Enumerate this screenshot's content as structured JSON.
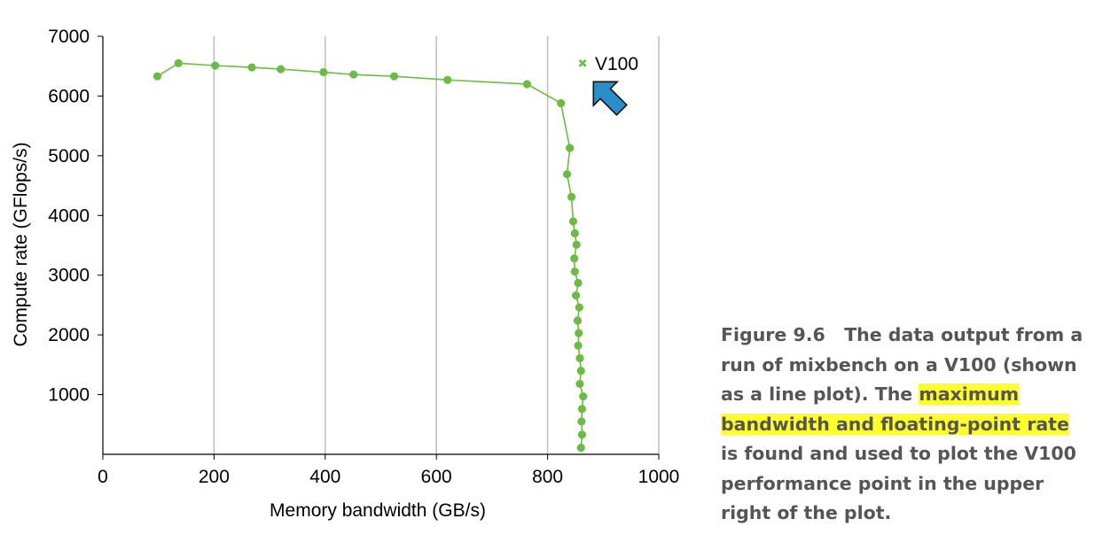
{
  "chart_data": {
    "type": "line",
    "xlabel": "Memory bandwidth (GB/s)",
    "ylabel": "Compute rate (GFlops/s)",
    "xlim": [
      0,
      1000
    ],
    "ylim": [
      0,
      7000
    ],
    "x_ticks": [
      "0",
      "200",
      "400",
      "600",
      "800",
      "1000"
    ],
    "y_ticks": [
      "1000",
      "2000",
      "3000",
      "4000",
      "5000",
      "6000",
      "7000"
    ],
    "grid": "vertical",
    "series": [
      {
        "color": "#6dbb45",
        "marker": "circle",
        "points": [
          [
            98,
            6330
          ],
          [
            136,
            6550
          ],
          [
            202,
            6510
          ],
          [
            268,
            6480
          ],
          [
            320,
            6450
          ],
          [
            397,
            6400
          ],
          [
            451,
            6360
          ],
          [
            524,
            6330
          ],
          [
            620,
            6270
          ],
          [
            763,
            6200
          ],
          [
            824,
            5880
          ],
          [
            840,
            5130
          ],
          [
            835,
            4690
          ],
          [
            843,
            4310
          ],
          [
            846,
            3900
          ],
          [
            849,
            3700
          ],
          [
            852,
            3510
          ],
          [
            848,
            3280
          ],
          [
            849,
            3060
          ],
          [
            855,
            2870
          ],
          [
            851,
            2660
          ],
          [
            857,
            2460
          ],
          [
            854,
            2240
          ],
          [
            856,
            2030
          ],
          [
            855,
            1820
          ],
          [
            858,
            1610
          ],
          [
            860,
            1400
          ],
          [
            858,
            1180
          ],
          [
            864,
            970
          ],
          [
            862,
            760
          ],
          [
            861,
            550
          ],
          [
            862,
            330
          ],
          [
            860,
            110
          ]
        ]
      },
      {
        "name": "V100",
        "color": "#6dbb45",
        "marker": "x",
        "points": [
          [
            863,
            6550
          ]
        ]
      }
    ],
    "annotations": [
      {
        "type": "arrow",
        "color": "#2a8fc9",
        "target": "V100"
      }
    ]
  },
  "caption": {
    "label": "Figure 9.6",
    "text_before": "The data output from a run of mixbench on a V100 (shown as a line plot). The",
    "highlight": "maximum bandwidth and floating-point rate",
    "text_after": "is found and used to plot the V100 performance point in the upper right of the plot.",
    "highlight_color": "#ffff2e"
  }
}
